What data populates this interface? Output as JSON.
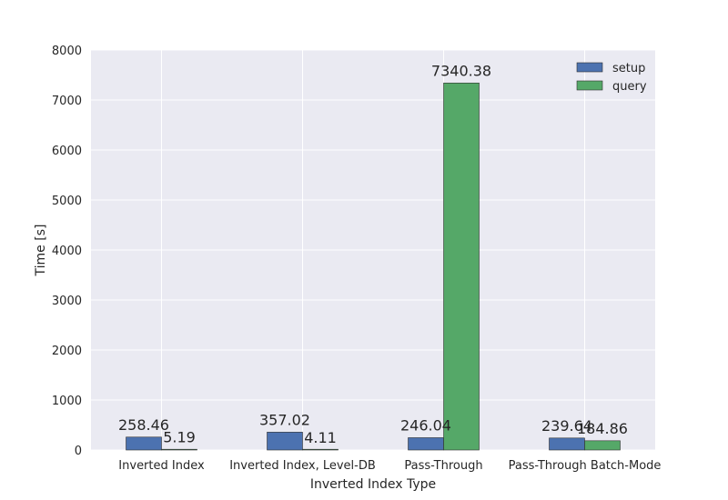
{
  "chart_data": {
    "type": "bar",
    "title": "",
    "xlabel": "Inverted Index Type",
    "ylabel": "Time [s]",
    "ylim": [
      0,
      8000
    ],
    "yticks": [
      0,
      1000,
      2000,
      3000,
      4000,
      5000,
      6000,
      7000,
      8000
    ],
    "categories": [
      "Inverted Index",
      "Inverted Index, Level-DB",
      "Pass-Through",
      "Pass-Through Batch-Mode"
    ],
    "series": [
      {
        "name": "setup",
        "color": "#4c72b0",
        "values": [
          258.46,
          357.02,
          246.04,
          239.64
        ],
        "labels": [
          "258.46",
          "357.02",
          "246.04",
          "239.64"
        ]
      },
      {
        "name": "query",
        "color": "#55a868",
        "values": [
          5.19,
          4.11,
          7340.38,
          184.86
        ],
        "labels": [
          "5.19",
          "4.11",
          "7340.38",
          "184.86"
        ]
      }
    ],
    "legend_position": "top-right",
    "grid": true,
    "background_color": "#eaeaf2",
    "grid_color": "#ffffff"
  }
}
